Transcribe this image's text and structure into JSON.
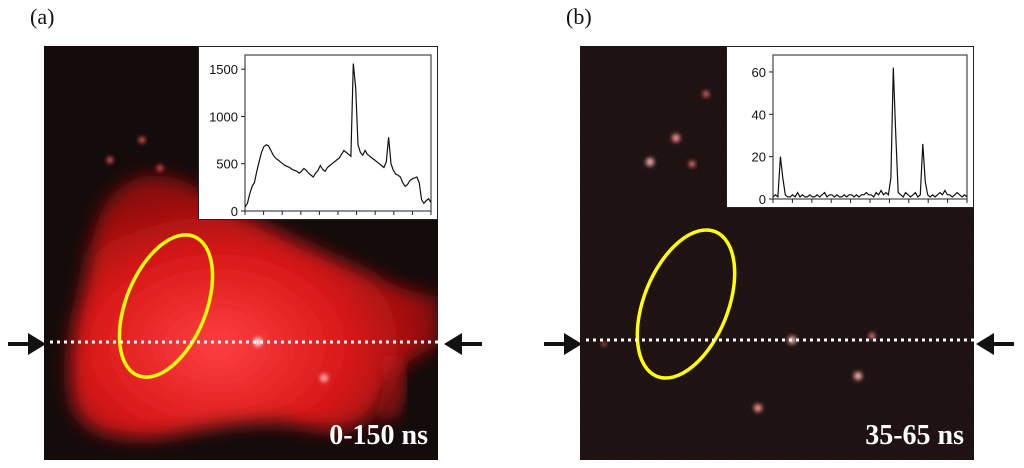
{
  "panels": [
    {
      "letter": "(a)",
      "time_window": "0-150 ns",
      "inset": {
        "y_ticks": [
          "1500",
          "1000",
          "500",
          "0"
        ],
        "y_tick_values": [
          1500,
          1000,
          500,
          0
        ],
        "y_max": 1650,
        "trace": [
          40,
          80,
          180,
          260,
          300,
          420,
          520,
          620,
          680,
          700,
          690,
          640,
          590,
          560,
          540,
          520,
          500,
          480,
          470,
          460,
          440,
          430,
          420,
          400,
          420,
          450,
          430,
          400,
          380,
          360,
          400,
          430,
          480,
          440,
          420,
          460,
          480,
          500,
          520,
          540,
          560,
          600,
          640,
          620,
          600,
          580,
          1560,
          1300,
          700,
          620,
          590,
          640,
          600,
          580,
          560,
          540,
          520,
          500,
          480,
          460,
          520,
          780,
          500,
          430,
          390,
          380,
          360,
          300,
          260,
          280,
          320,
          340,
          350,
          360,
          300,
          120,
          80,
          110,
          130,
          90
        ]
      }
    },
    {
      "letter": "(b)",
      "time_window": "35-65 ns",
      "inset": {
        "y_ticks": [
          "60",
          "40",
          "20",
          "0"
        ],
        "y_tick_values": [
          60,
          40,
          20,
          0
        ],
        "y_max": 68,
        "trace": [
          1,
          2,
          1,
          20,
          10,
          2,
          1,
          1,
          2,
          1,
          3,
          1,
          2,
          1,
          1,
          2,
          1,
          1,
          2,
          1,
          2,
          3,
          1,
          2,
          2,
          1,
          2,
          1,
          1,
          2,
          1,
          2,
          2,
          1,
          2,
          1,
          2,
          2,
          3,
          2,
          2,
          1,
          3,
          2,
          4,
          2,
          3,
          2,
          10,
          62,
          30,
          3,
          2,
          1,
          3,
          2,
          1,
          2,
          3,
          1,
          2,
          26,
          8,
          2,
          1,
          2,
          1,
          2,
          3,
          2,
          4,
          2,
          2,
          1,
          2,
          3,
          2,
          1,
          2,
          1
        ]
      }
    }
  ],
  "colors": {
    "signal": "#ff2020",
    "roi": "#ffff00",
    "line": "#ffffff"
  }
}
